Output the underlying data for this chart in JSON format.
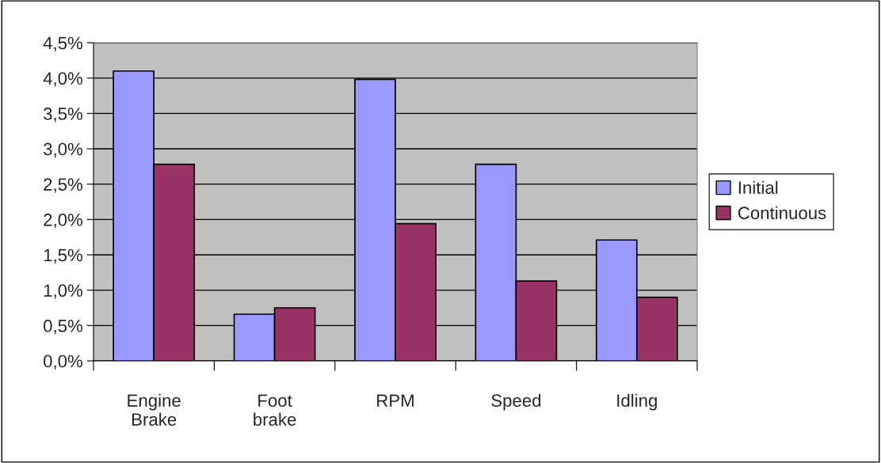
{
  "chart_data": {
    "type": "bar",
    "categories": [
      "Engine\nBrake",
      "Foot\nbrake",
      "RPM",
      "Speed",
      "Idling"
    ],
    "series": [
      {
        "name": "Initial",
        "color": "#9999ff",
        "values": [
          4.1,
          0.66,
          3.98,
          2.78,
          1.71
        ]
      },
      {
        "name": "Continuous",
        "color": "#993366",
        "values": [
          2.78,
          0.75,
          1.94,
          1.13,
          0.9
        ]
      }
    ],
    "ylim": [
      0,
      4.5
    ],
    "yticks": [
      {
        "value": 0,
        "label": "0,0%"
      },
      {
        "value": 0.5,
        "label": "0,5%"
      },
      {
        "value": 1,
        "label": "1,0%"
      },
      {
        "value": 1.5,
        "label": "1,5%"
      },
      {
        "value": 2,
        "label": "2,0%"
      },
      {
        "value": 2.5,
        "label": "2,5%"
      },
      {
        "value": 3,
        "label": "3,0%"
      },
      {
        "value": 3.5,
        "label": "3,5%"
      },
      {
        "value": 4,
        "label": "4,0%"
      },
      {
        "value": 4.5,
        "label": "4,5%"
      }
    ],
    "grid": "y",
    "legend": "right"
  }
}
